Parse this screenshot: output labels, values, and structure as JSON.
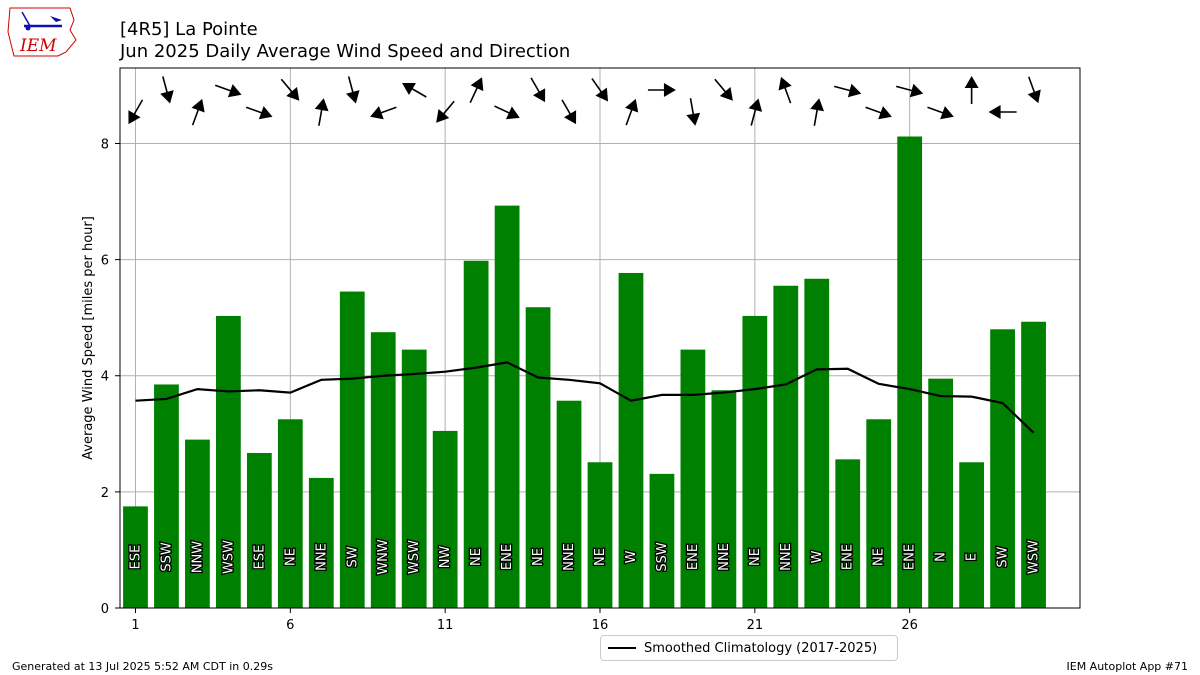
{
  "title_line1": "[4R5] La Pointe",
  "title_line2": "Jun 2025 Daily Average Wind Speed and Direction",
  "logo_text": "IEM",
  "footer_left": "Generated at 13 Jul 2025 5:52 AM CDT in 0.29s",
  "footer_right": "IEM Autoplot App #71",
  "colors": {
    "bars": "#008000",
    "climo": "#000000",
    "grid": "#b0b0b0",
    "logo": "#d00000"
  },
  "chart_data": {
    "type": "bar",
    "x": [
      1,
      2,
      3,
      4,
      5,
      6,
      7,
      8,
      9,
      10,
      11,
      12,
      13,
      14,
      15,
      16,
      17,
      18,
      19,
      20,
      21,
      22,
      23,
      24,
      25,
      26,
      27,
      28,
      29,
      30
    ],
    "values": [
      1.75,
      3.85,
      2.9,
      5.03,
      2.67,
      3.25,
      2.24,
      5.45,
      4.75,
      4.45,
      3.05,
      5.98,
      6.93,
      5.18,
      3.57,
      2.51,
      5.77,
      2.31,
      4.45,
      3.75,
      5.03,
      5.55,
      5.67,
      2.56,
      3.25,
      8.12,
      3.95,
      2.51,
      4.8,
      4.93
    ],
    "directions": [
      "ESE",
      "SSW",
      "NNW",
      "WSW",
      "ESE",
      "NE",
      "NNE",
      "SW",
      "WNW",
      "WSW",
      "NW",
      "NE",
      "ENE",
      "NE",
      "NNE",
      "NE",
      "W",
      "SSW",
      "ENE",
      "NNE",
      "NE",
      "NNE",
      "W",
      "ENE",
      "NE",
      "ENE",
      "N",
      "E",
      "SW",
      "WSW"
    ],
    "arrow_angles_deg": [
      120,
      75,
      290,
      20,
      20,
      50,
      280,
      75,
      160,
      210,
      130,
      295,
      25,
      60,
      60,
      55,
      290,
      0,
      80,
      50,
      285,
      250,
      280,
      15,
      20,
      15,
      20,
      270,
      180,
      70
    ],
    "climatology": {
      "name": "Smoothed Climatology (2017-2025)",
      "values": [
        3.57,
        3.6,
        3.77,
        3.73,
        3.75,
        3.71,
        3.93,
        3.95,
        4.0,
        4.03,
        4.07,
        4.14,
        4.23,
        3.97,
        3.93,
        3.87,
        3.57,
        3.67,
        3.67,
        3.71,
        3.77,
        3.85,
        4.11,
        4.12,
        3.86,
        3.77,
        3.65,
        3.64,
        3.53,
        3.02
      ]
    },
    "xticks": [
      1,
      6,
      11,
      16,
      21,
      26
    ],
    "yticks": [
      0,
      2,
      4,
      6,
      8
    ],
    "ylabel": "Average Wind Speed [miles per hour]",
    "xlim": [
      0.5,
      31.5
    ],
    "ylim": [
      0,
      9.3
    ],
    "grid": true,
    "legend_position": "bottom-center"
  }
}
